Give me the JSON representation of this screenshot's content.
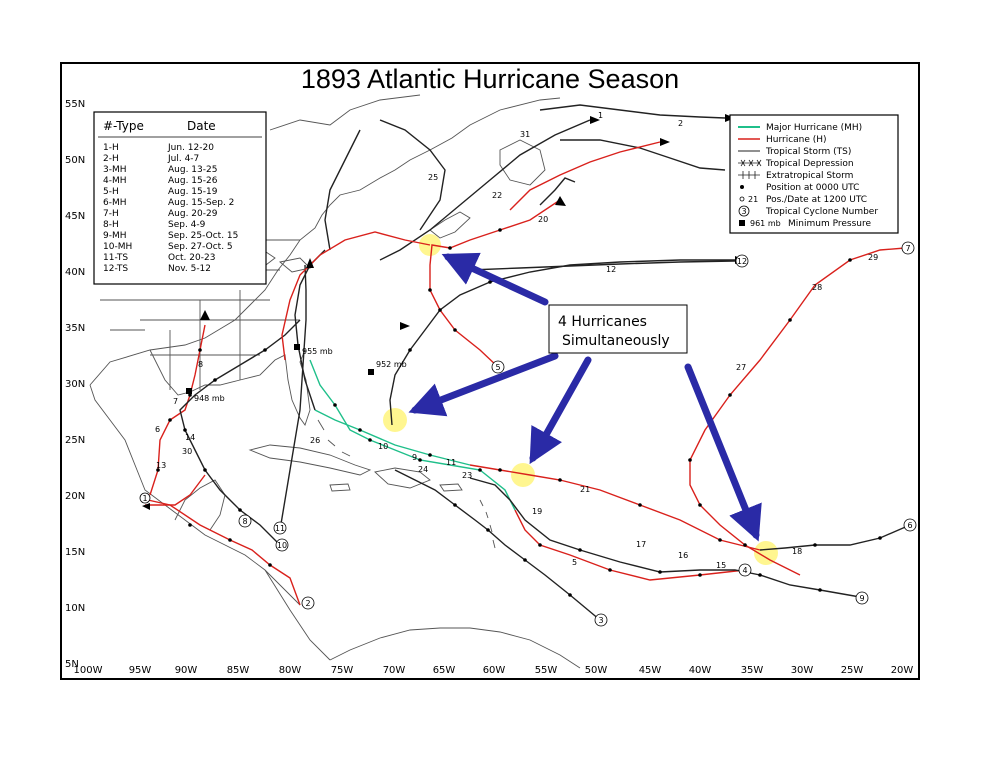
{
  "title": "1893 Atlantic Hurricane Season",
  "storm_table": {
    "header_type": "#-Type",
    "header_date": "Date",
    "rows": [
      {
        "type": "1-H",
        "date": "Jun. 12-20"
      },
      {
        "type": "2-H",
        "date": "Jul. 4-7"
      },
      {
        "type": "3-MH",
        "date": "Aug. 13-25"
      },
      {
        "type": "4-MH",
        "date": "Aug. 15-26"
      },
      {
        "type": "5-H",
        "date": "Aug. 15-19"
      },
      {
        "type": "6-MH",
        "date": "Aug. 15-Sep. 2"
      },
      {
        "type": "7-H",
        "date": "Aug. 20-29"
      },
      {
        "type": "8-H",
        "date": "Sep. 4-9"
      },
      {
        "type": "9-MH",
        "date": "Sep. 25-Oct. 15"
      },
      {
        "type": "10-MH",
        "date": "Sep. 27-Oct. 5"
      },
      {
        "type": "11-TS",
        "date": "Oct. 20-23"
      },
      {
        "type": "12-TS",
        "date": "Nov. 5-12"
      }
    ]
  },
  "legend": {
    "items": [
      {
        "label": "Major Hurricane (MH)",
        "color": "#1fbf8a"
      },
      {
        "label": "Hurricane (H)",
        "color": "#d9211c"
      },
      {
        "label": "Tropical Storm (TS)",
        "color": "#222222"
      },
      {
        "label": "Tropical Depression"
      },
      {
        "label": "Extratropical Storm"
      },
      {
        "label": "Position at 0000 UTC"
      },
      {
        "label": "Pos./Date at 1200 UTC",
        "sample": "21"
      },
      {
        "label": "Tropical Cyclone Number",
        "sample": "3"
      },
      {
        "label": "Minimum Pressure",
        "sample": "961 mb"
      }
    ]
  },
  "annotation": {
    "line1": "4 Hurricanes",
    "line2": "Simultaneously",
    "arrow_color": "#2a2aa6",
    "highlight_color": "#fff36b"
  },
  "axes": {
    "lat_labels": [
      "55N",
      "50N",
      "45N",
      "40N",
      "35N",
      "30N",
      "25N",
      "20N",
      "15N",
      "10N",
      "5N"
    ],
    "lon_labels": [
      "100W",
      "95W",
      "90W",
      "85W",
      "80W",
      "75W",
      "70W",
      "65W",
      "60W",
      "55W",
      "50W",
      "45W",
      "40W",
      "35W",
      "30W",
      "25W",
      "20W"
    ]
  },
  "pressure_labels": [
    "955 mb",
    "952 mb",
    "948 mb"
  ],
  "storm_numbers": [
    "1",
    "2",
    "3",
    "4",
    "5",
    "6",
    "7",
    "8",
    "9",
    "10",
    "11",
    "12"
  ],
  "date_labels": [
    "1",
    "2",
    "4",
    "5",
    "6",
    "7",
    "8",
    "9",
    "10",
    "11",
    "12",
    "13",
    "14",
    "15",
    "16",
    "17",
    "18",
    "19",
    "20",
    "21",
    "22",
    "23",
    "24",
    "25",
    "26",
    "27",
    "28",
    "29",
    "30",
    "31"
  ]
}
